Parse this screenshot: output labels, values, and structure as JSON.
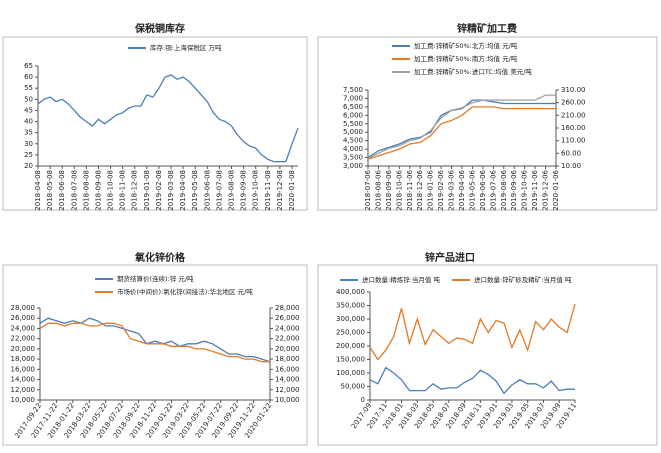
{
  "chart_data": [
    {
      "type": "line",
      "title": "保税铜库存",
      "categories": [
        "2018-04-08",
        null,
        "2018-05-08",
        null,
        "2018-06-08",
        null,
        "2018-07-08",
        null,
        "2018-08-08",
        null,
        "2018-09-08",
        null,
        "2018-10-08",
        null,
        "2018-11-08",
        null,
        "2018-12-08",
        null,
        "2019-01-08",
        null,
        "2019-02-08",
        null,
        "2019-03-08",
        null,
        "2019-04-08",
        null,
        "2019-05-08",
        null,
        "2019-06-08",
        null,
        "2019-07-08",
        null,
        "2019-08-08",
        null,
        "2019-09-08",
        null,
        "2019-10-08",
        null,
        "2019-11-08",
        null,
        "2019-12-08",
        null,
        "2020-01-08",
        null
      ],
      "series": [
        {
          "name": "库存:铜:上海保税区 万吨",
          "color": "#4a7ebb",
          "values": [
            48,
            50,
            51,
            49,
            50,
            48,
            45,
            42,
            40,
            38,
            41,
            39,
            41,
            43,
            44,
            46,
            47,
            47,
            52,
            51,
            55,
            60,
            61,
            59,
            60,
            58,
            55,
            52,
            49,
            44,
            41,
            40,
            38,
            34,
            31,
            29,
            28,
            25,
            23,
            22,
            22,
            22,
            30,
            37
          ]
        }
      ],
      "ylim": [
        20,
        65
      ],
      "yticks": [
        20,
        25,
        30,
        35,
        40,
        45,
        50,
        55,
        60,
        65
      ],
      "grid": false
    },
    {
      "type": "line",
      "title": "锌精矿加工费",
      "categories": [
        "2018-07-06",
        "2018-08-06",
        "2018-09-06",
        "2018-10-06",
        "2018-11-06",
        "2018-12-06",
        "2019-01-06",
        "2019-02-06",
        "2019-03-06",
        "2019-04-06",
        "2019-05-06",
        "2019-06-06",
        "2019-07-06",
        "2019-08-06",
        "2019-09-06",
        "2019-10-06",
        "2019-11-06",
        "2019-12-06",
        "2020-01-06"
      ],
      "series": [
        {
          "name": "加工费:锌精矿50%:北方:均值 元/吨",
          "color": "#4a7ebb",
          "values": [
            3500,
            3900,
            4100,
            4300,
            4600,
            4700,
            5000,
            6000,
            6300,
            6400,
            6900,
            6900,
            6800,
            6700,
            6700,
            6700,
            6700,
            6700,
            6700
          ]
        },
        {
          "name": "加工费:锌精矿50%:南方:均值 元/吨",
          "color": "#e07b2a",
          "values": [
            3400,
            3600,
            3800,
            4000,
            4300,
            4400,
            4800,
            5500,
            5700,
            6000,
            6500,
            6500,
            6500,
            6400,
            6400,
            6400,
            6400,
            6400,
            6400
          ]
        },
        {
          "name": "加工费:锌精矿50%:进口TC:均值 美元/吨",
          "color": "#a0a0a0",
          "axis": "y2",
          "values": [
            40,
            60,
            80,
            90,
            110,
            120,
            150,
            200,
            230,
            240,
            260,
            270,
            270,
            270,
            270,
            270,
            270,
            290,
            290
          ]
        }
      ],
      "ylim": [
        3000,
        7500
      ],
      "yticks": [
        {
          "value": 3000,
          "label": "3,000"
        },
        {
          "value": 3500,
          "label": "3,500"
        },
        {
          "value": 4000,
          "label": "4,000"
        },
        {
          "value": 4500,
          "label": "4,500"
        },
        {
          "value": 5000,
          "label": "5,000"
        },
        {
          "value": 5500,
          "label": "5,500"
        },
        {
          "value": 6000,
          "label": "6,000"
        },
        {
          "value": 6500,
          "label": "6,500"
        },
        {
          "value": 7000,
          "label": "7,000"
        },
        {
          "value": 7500,
          "label": "7,500"
        }
      ],
      "y2lim": [
        10,
        310
      ],
      "y2ticks": [
        {
          "value": 10,
          "label": "10.00"
        },
        {
          "value": 60,
          "label": "60.00"
        },
        {
          "value": 110,
          "label": "110.00"
        },
        {
          "value": 160,
          "label": "160.00"
        },
        {
          "value": 210,
          "label": "210.00"
        },
        {
          "value": 260,
          "label": "260.00"
        },
        {
          "value": 310,
          "label": "310.00"
        }
      ],
      "grid": false
    },
    {
      "type": "line",
      "title": "氧化锌价格",
      "categories": [
        "2017-09-22",
        null,
        "2017-11-22",
        null,
        "2018-01-22",
        null,
        "2018-03-22",
        null,
        "2018-05-22",
        null,
        "2018-07-22",
        null,
        "2018-09-22",
        null,
        "2018-11-22",
        null,
        "2019-01-22",
        null,
        "2019-03-22",
        null,
        "2019-05-22",
        null,
        "2019-07-22",
        null,
        "2019-09-22",
        null,
        "2019-11-22",
        null,
        "2020-01-22"
      ],
      "series": [
        {
          "name": "期货结算价(连续):锌 元/吨",
          "color": "#4a7ebb",
          "values": [
            25000,
            26000,
            25500,
            25000,
            25500,
            25000,
            26000,
            25500,
            24500,
            24500,
            24000,
            23500,
            23000,
            21000,
            21500,
            21000,
            21500,
            20500,
            21000,
            21000,
            21500,
            21000,
            20000,
            19000,
            19000,
            18500,
            18500,
            18000,
            17500
          ]
        },
        {
          "name": "市场价(中间价):氧化锌(间接法):华北地区 元/吨",
          "color": "#e07b2a",
          "axis": "y2",
          "values": [
            24000,
            25000,
            25000,
            24500,
            25000,
            25000,
            24500,
            24500,
            25000,
            25000,
            24500,
            22000,
            21500,
            21000,
            21000,
            21000,
            20500,
            20500,
            20500,
            20000,
            20000,
            19500,
            19000,
            18500,
            18500,
            18000,
            18000,
            17500,
            17500
          ]
        }
      ],
      "ylim": [
        10000,
        28000
      ],
      "yticks": [
        {
          "value": 10000,
          "label": "10,000"
        },
        {
          "value": 12000,
          "label": "12,000"
        },
        {
          "value": 14000,
          "label": "14,000"
        },
        {
          "value": 16000,
          "label": "16,000"
        },
        {
          "value": 18000,
          "label": "18,000"
        },
        {
          "value": 20000,
          "label": "20,000"
        },
        {
          "value": 22000,
          "label": "22,000"
        },
        {
          "value": 24000,
          "label": "24,000"
        },
        {
          "value": 26000,
          "label": "26,000"
        },
        {
          "value": 28000,
          "label": "28,000"
        }
      ],
      "y2lim": [
        10000,
        28000
      ],
      "y2ticks": [
        {
          "value": 10000,
          "label": "10,000"
        },
        {
          "value": 12000,
          "label": "12,000"
        },
        {
          "value": 14000,
          "label": "14,000"
        },
        {
          "value": 16000,
          "label": "16,000"
        },
        {
          "value": 18000,
          "label": "18,000"
        },
        {
          "value": 20000,
          "label": "20,000"
        },
        {
          "value": 22000,
          "label": "22,000"
        },
        {
          "value": 24000,
          "label": "24,000"
        },
        {
          "value": 26000,
          "label": "26,000"
        },
        {
          "value": 28000,
          "label": "28,000"
        }
      ],
      "grid": false
    },
    {
      "type": "line",
      "title": "锌产品进口",
      "categories": [
        "2017-09",
        null,
        "2017-11",
        null,
        "2018-01",
        null,
        "2018-03",
        null,
        "2018-05",
        null,
        "2018-07",
        null,
        "2018-09",
        null,
        "2018-11",
        null,
        "2019-01",
        null,
        "2019-03",
        null,
        "2019-05",
        null,
        "2019-07",
        null,
        "2019-09",
        null,
        "2019-11"
      ],
      "series": [
        {
          "name": "进口数量:精炼锌:当月值 吨",
          "color": "#4a7ebb",
          "values": [
            75000,
            60000,
            120000,
            100000,
            75000,
            35000,
            35000,
            35000,
            60000,
            40000,
            45000,
            45000,
            65000,
            80000,
            110000,
            95000,
            70000,
            25000,
            55000,
            75000,
            60000,
            60000,
            45000,
            70000,
            35000,
            40000,
            40000
          ]
        },
        {
          "name": "进口数量:锌矿砂及精矿:当月值 吨",
          "color": "#e07b2a",
          "values": [
            195000,
            150000,
            185000,
            235000,
            340000,
            210000,
            300000,
            205000,
            260000,
            235000,
            210000,
            230000,
            225000,
            210000,
            300000,
            250000,
            295000,
            285000,
            195000,
            260000,
            185000,
            290000,
            260000,
            300000,
            270000,
            250000,
            355000
          ]
        }
      ],
      "ylim": [
        0,
        400000
      ],
      "yticks": [
        0,
        {
          "value": 50000,
          "label": "50,000"
        },
        {
          "value": 100000,
          "label": "100,000"
        },
        {
          "value": 150000,
          "label": "150,000"
        },
        {
          "value": 200000,
          "label": "200,000"
        },
        {
          "value": 250000,
          "label": "250,000"
        },
        {
          "value": 300000,
          "label": "300,000"
        },
        {
          "value": 350000,
          "label": "350,000"
        },
        {
          "value": 400000,
          "label": "400,000"
        }
      ],
      "grid": false
    }
  ]
}
